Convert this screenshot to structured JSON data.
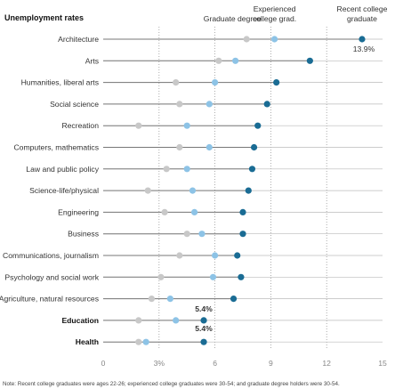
{
  "chart_data": {
    "type": "scatter",
    "title": "Unemployment rates",
    "xlim": [
      0,
      15
    ],
    "xticks": [
      0,
      3,
      6,
      9,
      12,
      15
    ],
    "xtick_labels": [
      "0",
      "3%",
      "6",
      "9",
      "12",
      "15"
    ],
    "categories": [
      "Architecture",
      "Arts",
      "Humanities, liberal arts",
      "Social science",
      "Recreation",
      "Computers, mathematics",
      "Law and public policy",
      "Science-life/physical",
      "Engineering",
      "Business",
      "Communications, journalism",
      "Psychology and social work",
      "Agriculture, natural resources",
      "Education",
      "Health"
    ],
    "bold_categories": [
      "Education",
      "Health"
    ],
    "series": [
      {
        "name": "Graduate degree",
        "color": "#c8c8c8",
        "values": [
          7.7,
          6.2,
          3.9,
          4.1,
          1.9,
          4.1,
          3.4,
          2.4,
          3.3,
          4.5,
          4.1,
          3.1,
          2.6,
          1.9,
          1.9
        ]
      },
      {
        "name": "Experienced college grad.",
        "color": "#8dc3e6",
        "values": [
          9.2,
          7.1,
          6.0,
          5.7,
          4.5,
          5.7,
          4.5,
          4.8,
          4.9,
          5.3,
          6.0,
          5.9,
          3.6,
          3.9,
          2.3
        ]
      },
      {
        "name": "Recent college graduate",
        "color": "#1a6c94",
        "values": [
          13.9,
          11.1,
          9.3,
          8.8,
          8.3,
          8.1,
          8.0,
          7.8,
          7.5,
          7.5,
          7.2,
          7.4,
          7.0,
          5.4,
          5.4
        ]
      }
    ],
    "annotations": [
      {
        "category": "Architecture",
        "text": "13.9%"
      },
      {
        "category": "Education",
        "text": "5.4%"
      },
      {
        "category": "Health",
        "text": "5.4%"
      }
    ],
    "grid": true,
    "legend": "top-right labels above columns",
    "note": "Note: Recent college graduates were ages 22-26; experienced college graduates were 30-54; and graduate degree holders were 30-54."
  }
}
